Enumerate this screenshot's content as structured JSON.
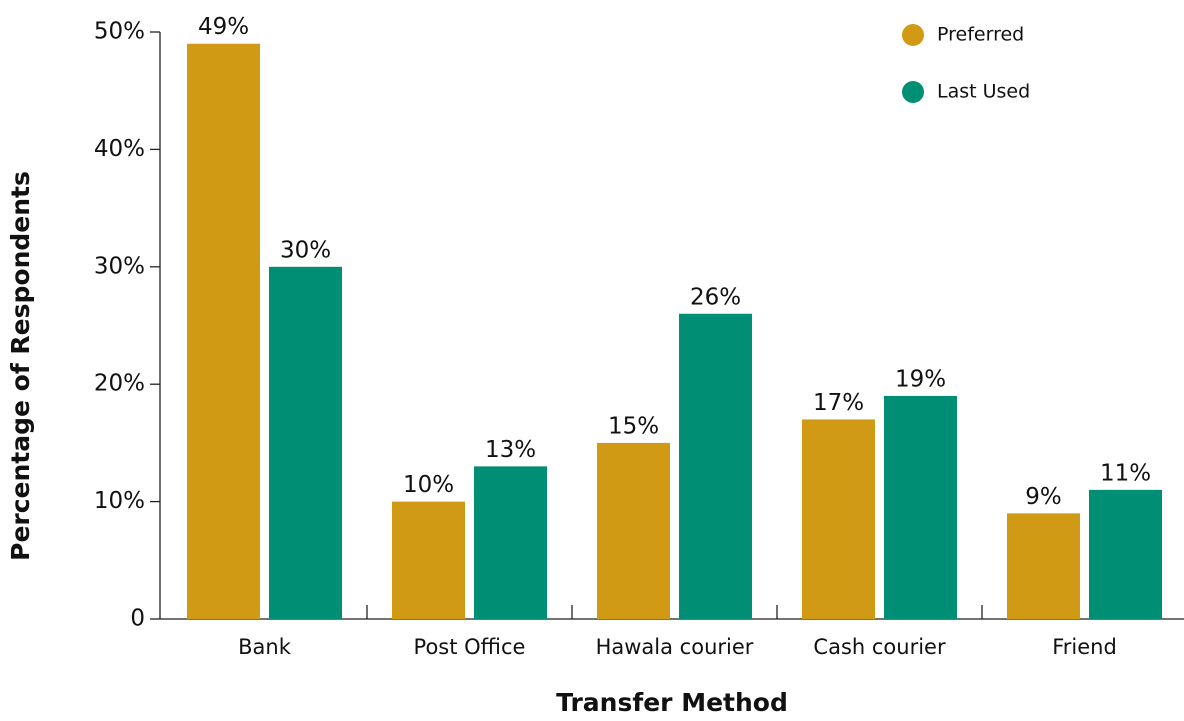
{
  "chart_data": {
    "type": "bar",
    "categories": [
      "Bank",
      "Post Office",
      "Hawala courier",
      "Cash courier",
      "Friend"
    ],
    "series": [
      {
        "name": "Preferred",
        "color": "#d09a14",
        "values": [
          49,
          10,
          15,
          17,
          9
        ],
        "value_labels": [
          "49%",
          "10%",
          "15%",
          "17%",
          "9%"
        ]
      },
      {
        "name": "Last Used",
        "color": "#008f74",
        "values": [
          30,
          13,
          26,
          19,
          11
        ],
        "value_labels": [
          "30%",
          "13%",
          "26%",
          "19%",
          "11%"
        ]
      }
    ],
    "x_label": "Transfer Method",
    "y_label": "Percentage of Respondents",
    "ylim": [
      0,
      50
    ],
    "yticks": [
      0,
      {
        "value": 10,
        "label": "10%"
      },
      {
        "value": 20,
        "label": "20%"
      },
      {
        "value": 30,
        "label": "30%"
      },
      {
        "value": 40,
        "label": "40%"
      },
      {
        "value": 50,
        "label": "50%"
      }
    ],
    "legend": "top-right"
  }
}
